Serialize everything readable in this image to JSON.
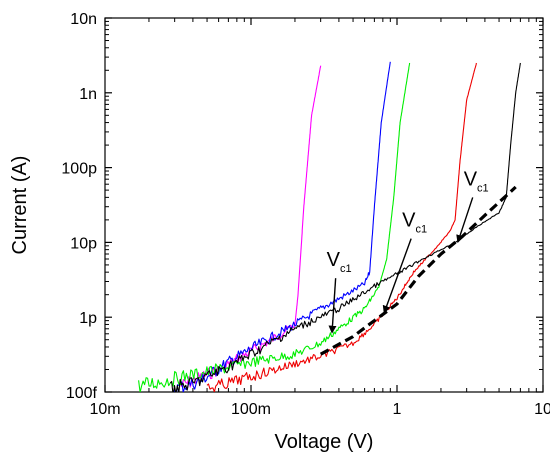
{
  "chart_data": {
    "type": "line",
    "xlabel": "Voltage (V)",
    "ylabel": "Current (A)",
    "x_scale": "log",
    "y_scale": "log",
    "xlim": [
      0.01,
      10
    ],
    "ylim": [
      1e-13,
      1e-08
    ],
    "x_ticks": [
      {
        "value": 0.01,
        "label": "10m"
      },
      {
        "value": 0.1,
        "label": "100m"
      },
      {
        "value": 1,
        "label": "1"
      },
      {
        "value": 10,
        "label": "10"
      }
    ],
    "y_ticks": [
      {
        "value": 1e-13,
        "label": "100f"
      },
      {
        "value": 1e-12,
        "label": "1p"
      },
      {
        "value": 1e-11,
        "label": "10p"
      },
      {
        "value": 1e-10,
        "label": "100p"
      },
      {
        "value": 1e-09,
        "label": "1n"
      },
      {
        "value": 1e-08,
        "label": "10n"
      }
    ],
    "grid": false,
    "legend": false,
    "series": [
      {
        "color": "#ff00ff",
        "noisy": true,
        "points": [
          [
            0.033,
            1.2e-13
          ],
          [
            0.06,
            2e-13
          ],
          [
            0.1,
            3.5e-13
          ],
          [
            0.15,
            5.5e-13
          ],
          [
            0.2,
            8e-13
          ],
          [
            0.21,
            2e-12
          ],
          [
            0.23,
            3e-11
          ],
          [
            0.26,
            5e-10
          ],
          [
            0.3,
            2.3e-09
          ]
        ]
      },
      {
        "color": "#0000ff",
        "noisy": true,
        "points": [
          [
            0.03,
            1.1e-13
          ],
          [
            0.045,
            1.4e-13
          ],
          [
            0.07,
            2.5e-13
          ],
          [
            0.1,
            3.8e-13
          ],
          [
            0.2,
            8e-13
          ],
          [
            0.3,
            1.3e-12
          ],
          [
            0.45,
            2e-12
          ],
          [
            0.6,
            2.8e-12
          ],
          [
            0.65,
            4e-12
          ],
          [
            0.7,
            3e-11
          ],
          [
            0.78,
            4e-10
          ],
          [
            0.9,
            2.6e-09
          ]
        ]
      },
      {
        "color": "#00ee00",
        "noisy": true,
        "points": [
          [
            0.017,
            1.2e-13
          ],
          [
            0.03,
            1.5e-13
          ],
          [
            0.06,
            2e-13
          ],
          [
            0.1,
            2.5e-13
          ],
          [
            0.2,
            3.2e-13
          ],
          [
            0.3,
            4.5e-13
          ],
          [
            0.4,
            7e-13
          ],
          [
            0.6,
            1.3e-12
          ],
          [
            0.75,
            2.5e-12
          ],
          [
            0.85,
            6e-12
          ],
          [
            0.95,
            4e-11
          ],
          [
            1.05,
            4e-10
          ],
          [
            1.22,
            2.5e-09
          ]
        ]
      },
      {
        "color": "#ee0000",
        "noisy": true,
        "points": [
          [
            0.05,
            1.1e-13
          ],
          [
            0.1,
            1.6e-13
          ],
          [
            0.2,
            2.4e-13
          ],
          [
            0.3,
            3e-13
          ],
          [
            0.5,
            4.5e-13
          ],
          [
            0.7,
            8e-13
          ],
          [
            1.0,
            1.8e-12
          ],
          [
            1.3,
            4e-12
          ],
          [
            1.8,
            8e-12
          ],
          [
            2.3,
            1.4e-11
          ],
          [
            2.5,
            2e-11
          ],
          [
            2.7,
            1.2e-10
          ],
          [
            3.0,
            8e-10
          ],
          [
            3.5,
            2.5e-09
          ]
        ]
      },
      {
        "color": "#000000",
        "noisy": true,
        "points": [
          [
            0.028,
            1.1e-13
          ],
          [
            0.04,
            1.3e-13
          ],
          [
            0.07,
            2.2e-13
          ],
          [
            0.1,
            3.2e-13
          ],
          [
            0.2,
            7e-13
          ],
          [
            0.4,
            1.3e-12
          ],
          [
            0.7,
            2.6e-12
          ],
          [
            1.0,
            3.8e-12
          ],
          [
            1.5,
            6e-12
          ],
          [
            2.5,
            1e-11
          ],
          [
            3.5,
            1.6e-11
          ],
          [
            5.0,
            2.5e-11
          ],
          [
            5.6,
            4e-11
          ],
          [
            6.0,
            2e-10
          ],
          [
            6.5,
            1e-09
          ],
          [
            7.0,
            2.5e-09
          ]
        ]
      },
      {
        "color": "#000000",
        "dashed": true,
        "points": [
          [
            0.3,
            3.2e-13
          ],
          [
            0.5,
            5.5e-13
          ],
          [
            0.7,
            9e-13
          ],
          [
            1.0,
            1.5e-12
          ],
          [
            1.4,
            3.5e-12
          ],
          [
            2.0,
            7e-12
          ],
          [
            2.8,
            1.2e-11
          ],
          [
            4.0,
            2.3e-11
          ],
          [
            6.5,
            5.5e-11
          ]
        ]
      }
    ],
    "annotations": [
      {
        "text": "V",
        "sub": "c1",
        "x": 0.38,
        "y": 4e-12,
        "arrow_to": [
          0.36,
          6.8e-13
        ]
      },
      {
        "text": "V",
        "sub": "c1",
        "x": 1.25,
        "y": 1.35e-11,
        "arrow_to": [
          0.83,
          1.25e-12
        ]
      },
      {
        "text": "V",
        "sub": "c1",
        "x": 3.3,
        "y": 4.8e-11,
        "arrow_to": [
          2.65,
          1.1e-11
        ]
      }
    ]
  }
}
